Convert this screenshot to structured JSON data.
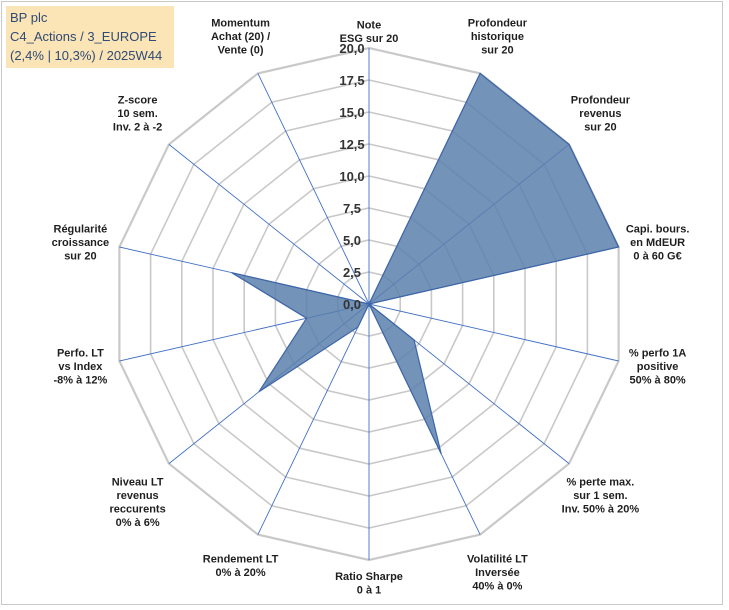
{
  "info": {
    "line1": "BP plc",
    "line2": "C4_Actions / 3_EUROPE",
    "line3": "(2,4% | 10,3%) / 2025W44"
  },
  "colors": {
    "fill": "#5b80ad",
    "stroke": "#3d65a8",
    "grid": "#c9c9c9",
    "spoke": "#4472c4",
    "info_bg": "#fbe5b6"
  },
  "chart_data": {
    "type": "radar",
    "rmin": 0,
    "rmax": 20,
    "ticks": [
      "0,0",
      "2,5",
      "5,0",
      "7,5",
      "10,0",
      "12,5",
      "15,0",
      "17,5",
      "20,0"
    ],
    "axes": [
      [
        "Note",
        "ESG sur 20"
      ],
      [
        "Profondeur",
        "historique",
        "sur 20"
      ],
      [
        "Profondeur",
        "revenus",
        "sur 20"
      ],
      [
        "Capi. bours.",
        "en MdEUR",
        "0 à 60 G€"
      ],
      [
        "% perfo 1A",
        "positive",
        "50% à 80%"
      ],
      [
        "% perte max.",
        "sur 1 sem.",
        "Inv. 50% à 20%"
      ],
      [
        "Volatilité LT",
        "Inversée",
        "40% à 0%"
      ],
      [
        "Ratio Sharpe",
        "0 à 1"
      ],
      [
        "Rendement LT",
        "0% à 20%"
      ],
      [
        "Niveau LT",
        "revenus",
        "reccurents",
        "0% à 6%"
      ],
      [
        "Perfo. LT",
        "vs Index",
        "-8% à 12%"
      ],
      [
        "Régularité",
        "croissance",
        "sur 20"
      ],
      [
        "Z-score",
        "10 sem.",
        "Inv. 2 à -2"
      ],
      [
        "Momentum",
        "Achat (20) /",
        "Vente (0)"
      ]
    ],
    "values": [
      0,
      20,
      20,
      20,
      0,
      4.5,
      13,
      0,
      2,
      11,
      5,
      11,
      0,
      0
    ]
  }
}
